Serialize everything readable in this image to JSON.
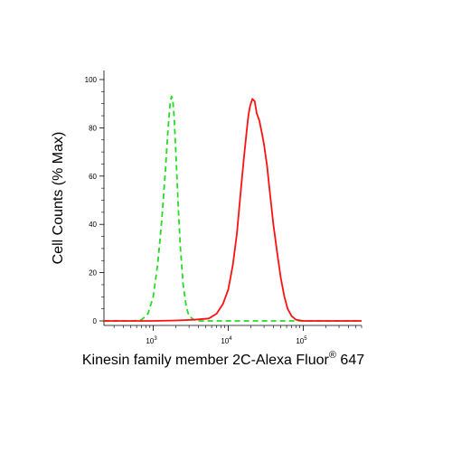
{
  "chart_data": {
    "type": "line",
    "xlabel": {
      "main": "Kinesin family member 2C-Alexa Fluor",
      "sup": "®",
      "tail": " 647"
    },
    "ylabel": "Cell Counts (% Max)",
    "x_scale": "log",
    "xlim": [
      220,
      600000
    ],
    "ylim": [
      0,
      100
    ],
    "y_ticks": [
      "0",
      "20",
      "40",
      "60",
      "80",
      "100"
    ],
    "x_ticks": [
      {
        "base": "10",
        "exp": "3",
        "value": 1000
      },
      {
        "base": "10",
        "exp": "4",
        "value": 10000
      },
      {
        "base": "10",
        "exp": "5",
        "value": 100000
      }
    ],
    "grid": false,
    "series": [
      {
        "color": "#22dd22",
        "style": "dashed",
        "points": [
          [
            220,
            0
          ],
          [
            400,
            0
          ],
          [
            550,
            0
          ],
          [
            700,
            0.5
          ],
          [
            850,
            3
          ],
          [
            1000,
            10
          ],
          [
            1150,
            24
          ],
          [
            1300,
            42
          ],
          [
            1450,
            62
          ],
          [
            1580,
            80
          ],
          [
            1680,
            90
          ],
          [
            1750,
            93
          ],
          [
            1820,
            92
          ],
          [
            1900,
            84
          ],
          [
            2000,
            70
          ],
          [
            2150,
            48
          ],
          [
            2300,
            30
          ],
          [
            2500,
            15
          ],
          [
            2750,
            6
          ],
          [
            3000,
            2
          ],
          [
            3500,
            0.5
          ],
          [
            4000,
            0
          ],
          [
            10000,
            0
          ],
          [
            100000,
            0
          ],
          [
            600000,
            0
          ]
        ]
      },
      {
        "color": "#ff1111",
        "style": "solid",
        "points": [
          [
            220,
            0
          ],
          [
            1000,
            0
          ],
          [
            2000,
            0.2
          ],
          [
            3500,
            0.5
          ],
          [
            5500,
            1
          ],
          [
            7000,
            3
          ],
          [
            8500,
            7
          ],
          [
            10000,
            13
          ],
          [
            11500,
            23
          ],
          [
            13000,
            36
          ],
          [
            14500,
            52
          ],
          [
            16000,
            66
          ],
          [
            17500,
            78
          ],
          [
            18500,
            85
          ],
          [
            19500,
            89
          ],
          [
            21000,
            92
          ],
          [
            22500,
            91
          ],
          [
            24000,
            86
          ],
          [
            26000,
            83
          ],
          [
            28000,
            78
          ],
          [
            30000,
            73
          ],
          [
            33000,
            64
          ],
          [
            36000,
            53
          ],
          [
            40000,
            40
          ],
          [
            45000,
            28
          ],
          [
            50000,
            18
          ],
          [
            56000,
            10
          ],
          [
            62000,
            5
          ],
          [
            70000,
            2
          ],
          [
            80000,
            0.5
          ],
          [
            100000,
            0
          ],
          [
            600000,
            0
          ]
        ]
      }
    ]
  }
}
